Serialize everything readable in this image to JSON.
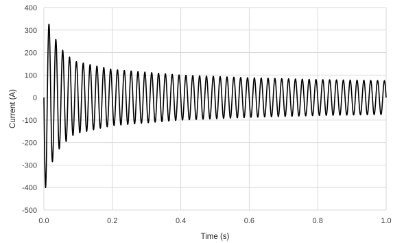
{
  "chart_data": {
    "type": "line",
    "title": "",
    "xlabel": "Time (s)",
    "ylabel": "Current  (A)",
    "xlim": [
      0.0,
      1.0
    ],
    "ylim": [
      -500,
      400
    ],
    "x_ticks": [
      0.0,
      0.2,
      0.4,
      0.6,
      0.8,
      1.0
    ],
    "x_tick_labels": [
      "0.0",
      "0.2",
      "0.4",
      "0.6",
      "0.8",
      "1.0"
    ],
    "y_ticks": [
      -500,
      -400,
      -300,
      -200,
      -100,
      0,
      100,
      200,
      300,
      400
    ],
    "y_tick_labels": [
      "-500",
      "-400",
      "-300",
      "-200",
      "-100",
      "0",
      "100",
      "200",
      "300",
      "400"
    ],
    "grid": true,
    "legend": "none",
    "series": [
      {
        "color": "#000000",
        "waveform": "damped sinusoid",
        "frequency_hz": 50,
        "steady_amplitude_A": 75,
        "peaks": [
          {
            "x": 0.005,
            "y": -400
          },
          {
            "x": 0.015,
            "y": 325
          },
          {
            "x": 0.025,
            "y": -285
          },
          {
            "x": 0.035,
            "y": 258
          },
          {
            "x": 0.045,
            "y": -228
          },
          {
            "x": 0.055,
            "y": 210
          },
          {
            "x": 0.065,
            "y": -195
          },
          {
            "x": 0.075,
            "y": 180
          },
          {
            "x": 0.085,
            "y": -168
          },
          {
            "x": 0.095,
            "y": 160
          },
          {
            "x": 0.2,
            "y": 125
          },
          {
            "x": 0.4,
            "y": 100
          },
          {
            "x": 0.6,
            "y": 88
          },
          {
            "x": 0.8,
            "y": 80
          },
          {
            "x": 1.0,
            "y": 75
          }
        ]
      }
    ]
  }
}
